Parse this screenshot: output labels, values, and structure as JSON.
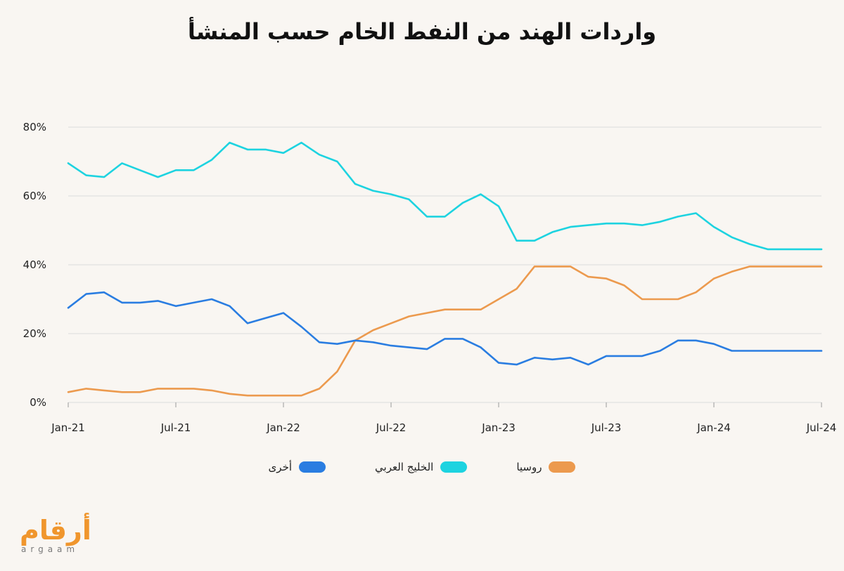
{
  "title": "واردات الهند من النفط الخام حسب المنشأ",
  "colors": {
    "russia": "#ec9a4e",
    "gulf": "#1dd3e0",
    "other": "#2a7de1",
    "grid": "#dcdcdc",
    "axis": "#999999",
    "text": "#222222",
    "logo": "#f0962d"
  },
  "legend": [
    {
      "key": "russia",
      "label": "روسيا",
      "color": "#ec9a4e"
    },
    {
      "key": "gulf",
      "label": "الخليج العربي",
      "color": "#1dd3e0"
    },
    {
      "key": "other",
      "label": "أخرى",
      "color": "#2a7de1"
    }
  ],
  "logo": {
    "arabic": "أرقام",
    "latin": "argaam"
  },
  "chart_data": {
    "type": "line",
    "title": "واردات الهند من النفط الخام حسب المنشأ",
    "xlabel": "",
    "ylabel": "",
    "ylim": [
      0,
      80
    ],
    "y_ticks": [
      "0%",
      "20%",
      "40%",
      "60%",
      "80%"
    ],
    "y_tick_values": [
      0,
      20,
      40,
      60,
      80
    ],
    "x_ticks": [
      "Jan-21",
      "Jul-21",
      "Jan-22",
      "Jul-22",
      "Jan-23",
      "Jul-23",
      "Jan-24",
      "Jul-24"
    ],
    "x_tick_dates": [
      "2021-01",
      "2021-07",
      "2022-01",
      "2022-07",
      "2023-01",
      "2023-07",
      "2024-01",
      "2024-07"
    ],
    "x": [
      "2021-01",
      "2021-02",
      "2021-03",
      "2021-04",
      "2021-05",
      "2021-06",
      "2021-07",
      "2021-08",
      "2021-09",
      "2021-10",
      "2021-11",
      "2021-12",
      "2022-01",
      "2022-02",
      "2022-03",
      "2022-04",
      "2022-05",
      "2022-06",
      "2022-07",
      "2022-08",
      "2022-09",
      "2022-10",
      "2022-11",
      "2022-12",
      "2023-01",
      "2023-02",
      "2023-03",
      "2023-04",
      "2023-05",
      "2023-06",
      "2023-07",
      "2023-08",
      "2023-09",
      "2023-10",
      "2023-11",
      "2023-12",
      "2024-01",
      "2024-02",
      "2024-03",
      "2024-04",
      "2024-05",
      "2024-06",
      "2024-07"
    ],
    "grid": true,
    "legend_position": "bottom",
    "series": [
      {
        "name": "روسيا",
        "key": "russia",
        "values": [
          3,
          4,
          3.5,
          3,
          3,
          4,
          4,
          4,
          3.5,
          2.5,
          2,
          2,
          2,
          2,
          4,
          9,
          18,
          21,
          23,
          25,
          26,
          27,
          27,
          27,
          30,
          33,
          39.5,
          39.5,
          39.5,
          36.5,
          36,
          34,
          30,
          30,
          30,
          32,
          36,
          38,
          39.5,
          39.5,
          39.5,
          39.5,
          39.5
        ]
      },
      {
        "name": "الخليج العربي",
        "key": "gulf",
        "values": [
          69.5,
          66,
          65.5,
          69.5,
          67.5,
          65.5,
          67.5,
          67.5,
          70.5,
          75.5,
          73.5,
          73.5,
          72.5,
          75.5,
          72,
          70,
          63.5,
          61.5,
          60.5,
          59,
          54,
          54,
          58,
          60.5,
          57,
          47,
          47,
          49.5,
          51,
          51.5,
          52,
          52,
          51.5,
          52.5,
          54,
          55,
          51,
          48,
          46,
          44.5,
          44.5,
          44.5,
          44.5
        ]
      },
      {
        "name": "أخرى",
        "key": "other",
        "values": [
          27.5,
          31.5,
          32,
          29,
          29,
          29.5,
          28,
          29,
          30,
          28,
          23,
          24.5,
          26,
          22,
          17.5,
          17,
          18,
          17.5,
          16.5,
          16,
          15.5,
          18.5,
          18.5,
          16,
          11.5,
          11,
          13,
          12.5,
          13,
          11,
          13.5,
          13.5,
          13.5,
          15,
          18,
          18,
          17,
          15,
          15,
          15,
          15,
          15,
          15
        ]
      }
    ]
  }
}
